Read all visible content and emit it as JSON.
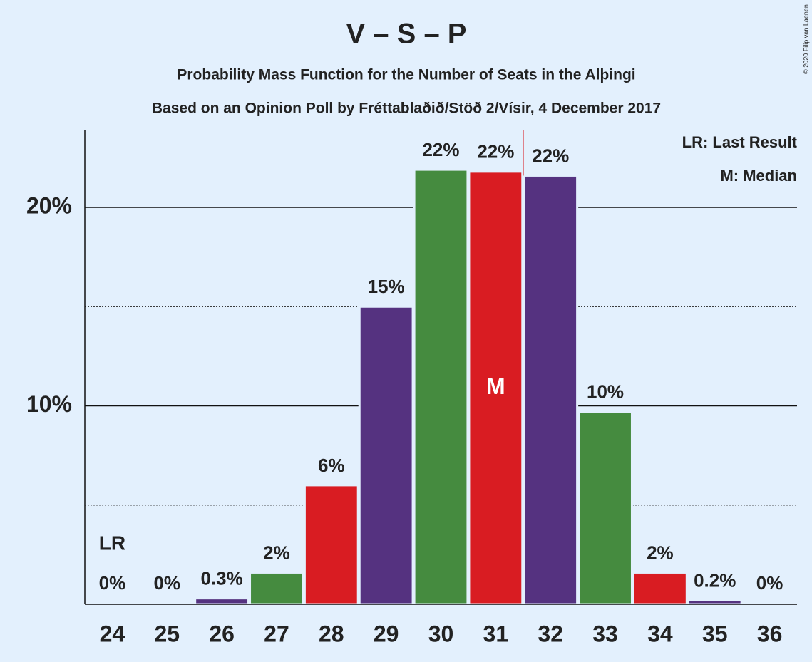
{
  "chart_data": {
    "type": "bar",
    "title": "V – S – P",
    "subtitle": "Probability Mass Function for the Number of Seats in the Alþingi",
    "subtitle2": "Based on an Opinion Poll by Fréttablaðið/Stöð 2/Vísir, 4 December 2017",
    "copyright": "© 2020 Filip van Laenen",
    "categories": [
      "24",
      "25",
      "26",
      "27",
      "28",
      "29",
      "30",
      "31",
      "32",
      "33",
      "34",
      "35",
      "36"
    ],
    "values": [
      0,
      0,
      0.3,
      1.6,
      6.0,
      15.0,
      21.9,
      21.8,
      21.6,
      9.7,
      1.6,
      0.2,
      0
    ],
    "value_labels": [
      "0%",
      "0%",
      "0.3%",
      "2%",
      "6%",
      "15%",
      "22%",
      "22%",
      "22%",
      "10%",
      "2%",
      "0.2%",
      "0%"
    ],
    "colors": [
      "#458b3f",
      "#d91c22",
      "#553280",
      "#458b3f",
      "#d91c22",
      "#553280",
      "#458b3f",
      "#d91c22",
      "#553280",
      "#458b3f",
      "#d91c22",
      "#553280",
      "#458b3f"
    ],
    "ylim": [
      0,
      23.9
    ],
    "yticks": [
      {
        "value": 10,
        "label": "10%"
      },
      {
        "value": 20,
        "label": "20%"
      }
    ],
    "minor_yticks": [
      5,
      15
    ],
    "grid": true,
    "annotations": [
      {
        "text": "LR",
        "category": "24"
      },
      {
        "text": "M",
        "category": "31"
      }
    ],
    "legend": [
      "LR: Last Result",
      "M: Median"
    ]
  }
}
